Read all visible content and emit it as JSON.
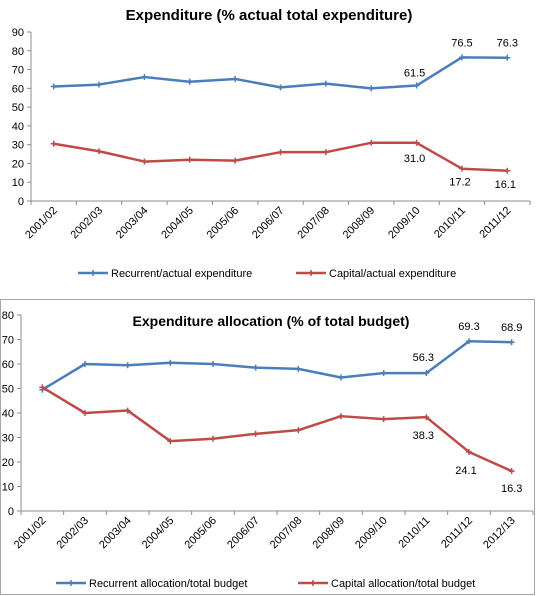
{
  "colors": {
    "recurrent": "#4a7ebb",
    "capital": "#be4b48"
  },
  "chart_data": [
    {
      "type": "line",
      "title": "Expenditure (% actual total expenditure)",
      "categories": [
        "2001/02",
        "2002/03",
        "2003/04",
        "2004/05",
        "2005/06",
        "2006/07",
        "2007/08",
        "2008/09",
        "2009/10",
        "2010/11",
        "2011/12"
      ],
      "ylim": [
        0,
        90
      ],
      "yticks": [
        0,
        10,
        20,
        30,
        40,
        50,
        60,
        70,
        80,
        90
      ],
      "grid": false,
      "legend_position": "bottom",
      "series": [
        {
          "name": "Recurrent/actual expenditure",
          "color": "#4a7ebb",
          "values": [
            61,
            62,
            66,
            63.5,
            65,
            60.5,
            62.5,
            60,
            61.5,
            76.5,
            76.3
          ],
          "labels": [
            "",
            "",
            "",
            "",
            "",
            "",
            "",
            "",
            "61.5",
            "76.5",
            "76.3"
          ]
        },
        {
          "name": "Capital/actual  expenditure",
          "color": "#be4b48",
          "values": [
            30.5,
            26.5,
            21,
            22,
            21.5,
            26,
            26,
            31,
            31.0,
            17.2,
            16.1
          ],
          "labels": [
            "",
            "",
            "",
            "",
            "",
            "",
            "",
            "",
            "31.0",
            "17.2",
            "16.1"
          ]
        }
      ]
    },
    {
      "type": "line",
      "title": "Expenditure allocation (% of total budget)",
      "categories": [
        "2001/02",
        "2002/03",
        "2003/04",
        "2004/05",
        "2005/06",
        "2006/07",
        "2007/08",
        "2008/09",
        "2009/10",
        "2010/11",
        "2011/12",
        "2012/13"
      ],
      "ylim": [
        0,
        80
      ],
      "yticks": [
        0,
        10,
        20,
        30,
        40,
        50,
        60,
        70,
        80
      ],
      "grid": false,
      "legend_position": "bottom",
      "series": [
        {
          "name": "Recurrent allocation/total  budget",
          "color": "#4a7ebb",
          "values": [
            49.5,
            60,
            59.5,
            60.5,
            60,
            58.5,
            58,
            54.5,
            56.3,
            56.3,
            69.3,
            68.9
          ],
          "labels": [
            "",
            "",
            "",
            "",
            "",
            "",
            "",
            "",
            "",
            "56.3",
            "69.3",
            "68.9"
          ]
        },
        {
          "name": "Capital allocation/total  budget",
          "color": "#be4b48",
          "values": [
            50.5,
            40,
            41,
            28.5,
            29.5,
            31.5,
            33,
            38.7,
            37.5,
            38.3,
            24.1,
            16.3
          ],
          "labels": [
            "",
            "",
            "",
            "",
            "",
            "",
            "",
            "",
            "",
            "38.3",
            "24.1",
            "16.3"
          ]
        }
      ]
    }
  ]
}
